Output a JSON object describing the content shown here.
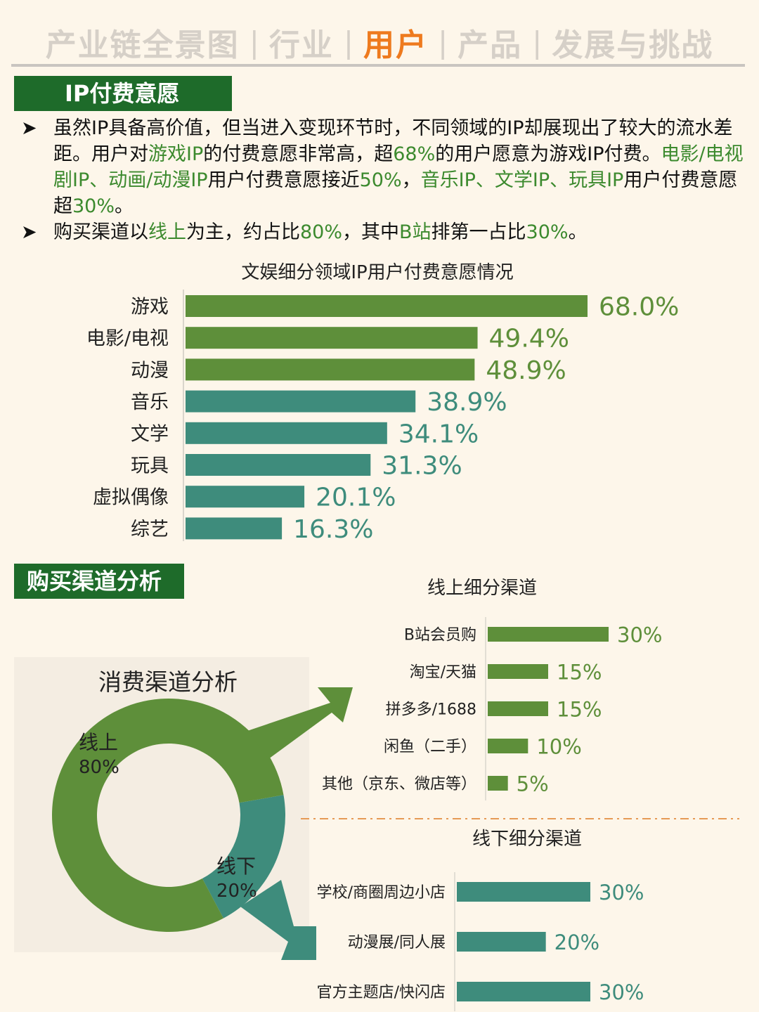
{
  "nav": {
    "items": [
      "产业链全景图",
      "行业",
      "用户",
      "产品",
      "发展与挑战"
    ],
    "active_index": 2,
    "separator": "|"
  },
  "section1": {
    "title": "IP付费意愿"
  },
  "bullets": {
    "marker": "➤",
    "b1": [
      {
        "t": "虽然IP具备高价值，但当进入变现环节时，不同领域的IP却展现出了较大的流水差距。用户对"
      },
      {
        "t": "游戏IP",
        "hl": true
      },
      {
        "t": "的付费意愿非常高，超"
      },
      {
        "t": "68%",
        "hl": true
      },
      {
        "t": "的用户愿意为游戏IP付费。"
      },
      {
        "t": "电影/电视剧IP、动画/动漫IP",
        "hl": true
      },
      {
        "t": "用户付费意愿接近"
      },
      {
        "t": "50%",
        "hl": true
      },
      {
        "t": "，"
      },
      {
        "t": "音乐IP、文学IP、玩具IP",
        "hl": true
      },
      {
        "t": "用户付费意愿超"
      },
      {
        "t": "30%",
        "hl": true
      },
      {
        "t": "。"
      }
    ],
    "b2": [
      {
        "t": "购买渠道以"
      },
      {
        "t": "线上",
        "hl": true
      },
      {
        "t": "为主，约占比"
      },
      {
        "t": "80%",
        "hl": true
      },
      {
        "t": "，其中"
      },
      {
        "t": "B站",
        "hl": true
      },
      {
        "t": "排第一占比"
      },
      {
        "t": "30%",
        "hl": true
      },
      {
        "t": "。"
      }
    ]
  },
  "section2": {
    "title": "购买渠道分析"
  },
  "colors": {
    "header_green": "#1e6b2a",
    "bar_green": "#5e8f3a",
    "bar_teal": "#3e8c7c",
    "nav_active": "#ee7a1e",
    "nav_inactive": "#d6d0c8",
    "highlight_text": "#3c8a2e",
    "divider_orange": "#e69a55"
  },
  "chart_data": [
    {
      "id": "ip_payment",
      "type": "bar",
      "orientation": "horizontal",
      "title": "文娱细分领域IP用户付费意愿情况",
      "categories": [
        "游戏",
        "电影/电视",
        "动漫",
        "音乐",
        "文学",
        "玩具",
        "虚拟偶像",
        "综艺"
      ],
      "values": [
        68.0,
        49.4,
        48.9,
        38.9,
        34.1,
        31.3,
        20.1,
        16.3
      ],
      "value_labels": [
        "68.0%",
        "49.4%",
        "48.9%",
        "38.9%",
        "34.1%",
        "31.3%",
        "20.1%",
        "16.3%"
      ],
      "bar_colors": [
        "green",
        "green",
        "green",
        "teal",
        "teal",
        "teal",
        "teal",
        "teal"
      ],
      "unit": "%",
      "xlim": [
        0,
        68
      ],
      "grid": false
    },
    {
      "id": "channel_split",
      "type": "pie",
      "style": "donut",
      "title": "消费渠道分析",
      "slices": [
        {
          "label": "线上",
          "value": 80,
          "value_label": "80%",
          "color": "green"
        },
        {
          "label": "线下",
          "value": 20,
          "value_label": "20%",
          "color": "teal"
        }
      ]
    },
    {
      "id": "online_channels",
      "type": "bar",
      "orientation": "horizontal",
      "title": "线上细分渠道",
      "categories": [
        "B站会员购",
        "淘宝/天猫",
        "拼多多/1688",
        "闲鱼（二手）",
        "其他（京东、微店等）"
      ],
      "values": [
        30,
        15,
        15,
        10,
        5
      ],
      "value_labels": [
        "30%",
        "15%",
        "15%",
        "10%",
        "5%"
      ],
      "color": "green",
      "xlim": [
        0,
        30
      ]
    },
    {
      "id": "offline_channels",
      "type": "bar",
      "orientation": "horizontal",
      "title": "线下细分渠道",
      "categories": [
        "学校/商圈周边小店",
        "动漫展/同人展",
        "官方主题店/快闪店"
      ],
      "values": [
        30,
        20,
        30
      ],
      "value_labels": [
        "30%",
        "20%",
        "30%"
      ],
      "color": "teal",
      "xlim": [
        0,
        30
      ]
    }
  ]
}
